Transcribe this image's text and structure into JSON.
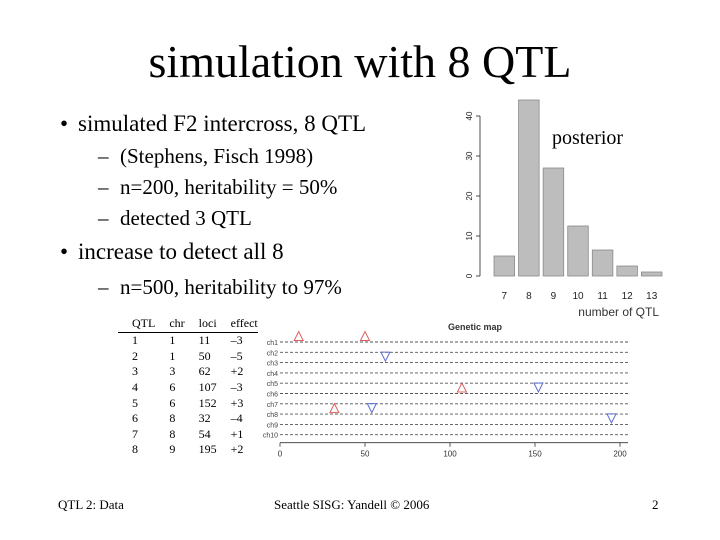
{
  "slide": {
    "title": "simulation with 8 QTL",
    "bullets": [
      {
        "text": "simulated F2 intercross, 8 QTL",
        "subs": [
          "(Stephens, Fisch 1998)",
          "n=200, heritability = 50%",
          "detected 3 QTL"
        ]
      },
      {
        "text": "increase to detect all 8",
        "subs": [
          "n=500, heritability to 97%"
        ]
      }
    ],
    "bullet_symbol": "•",
    "dash_symbol": "–",
    "footer_left": "QTL 2: Data",
    "footer_center": "Seattle SISG: Yandell © 2006",
    "page_number": "2"
  },
  "qtl_table": {
    "headers": [
      "QTL",
      "chr",
      "loci",
      "effect"
    ],
    "rows": [
      [
        "1",
        "1",
        "11",
        "–3"
      ],
      [
        "2",
        "1",
        "50",
        "–5"
      ],
      [
        "3",
        "3",
        "62",
        "+2"
      ],
      [
        "4",
        "6",
        "107",
        "–3"
      ],
      [
        "5",
        "6",
        "152",
        "+3"
      ],
      [
        "6",
        "8",
        "32",
        "–4"
      ],
      [
        "7",
        "8",
        "54",
        "+1"
      ],
      [
        "8",
        "9",
        "195",
        "+2"
      ]
    ]
  },
  "chart_data": [
    {
      "type": "bar",
      "annotation": "posterior",
      "categories": [
        "7",
        "8",
        "9",
        "10",
        "11",
        "12",
        "13"
      ],
      "values": [
        5,
        44,
        27,
        12.5,
        6.5,
        2.5,
        1
      ],
      "xlabel": "number of QTL",
      "ylabel": "",
      "yticks": [
        0,
        10,
        20,
        30,
        40
      ],
      "ylim": [
        0,
        44
      ],
      "bar_color": "#bdbdbd",
      "grid": false
    },
    {
      "type": "scatter",
      "title": "Genetic map",
      "chromosomes": [
        "ch1",
        "ch2",
        "ch3",
        "ch4",
        "ch5",
        "ch6",
        "ch7",
        "ch8",
        "ch9",
        "ch10"
      ],
      "xticks": [
        0,
        50,
        100,
        150,
        200
      ],
      "xlim": [
        0,
        205
      ],
      "up_marker_color": "#e06060",
      "down_marker_color": "#5a6fd0",
      "markers": [
        {
          "chr": 1,
          "pos": 11,
          "dir": "up"
        },
        {
          "chr": 1,
          "pos": 50,
          "dir": "up"
        },
        {
          "chr": 3,
          "pos": 62,
          "dir": "down"
        },
        {
          "chr": 6,
          "pos": 107,
          "dir": "up"
        },
        {
          "chr": 6,
          "pos": 152,
          "dir": "down"
        },
        {
          "chr": 8,
          "pos": 32,
          "dir": "up"
        },
        {
          "chr": 8,
          "pos": 54,
          "dir": "down"
        },
        {
          "chr": 9,
          "pos": 195,
          "dir": "down"
        }
      ]
    }
  ]
}
